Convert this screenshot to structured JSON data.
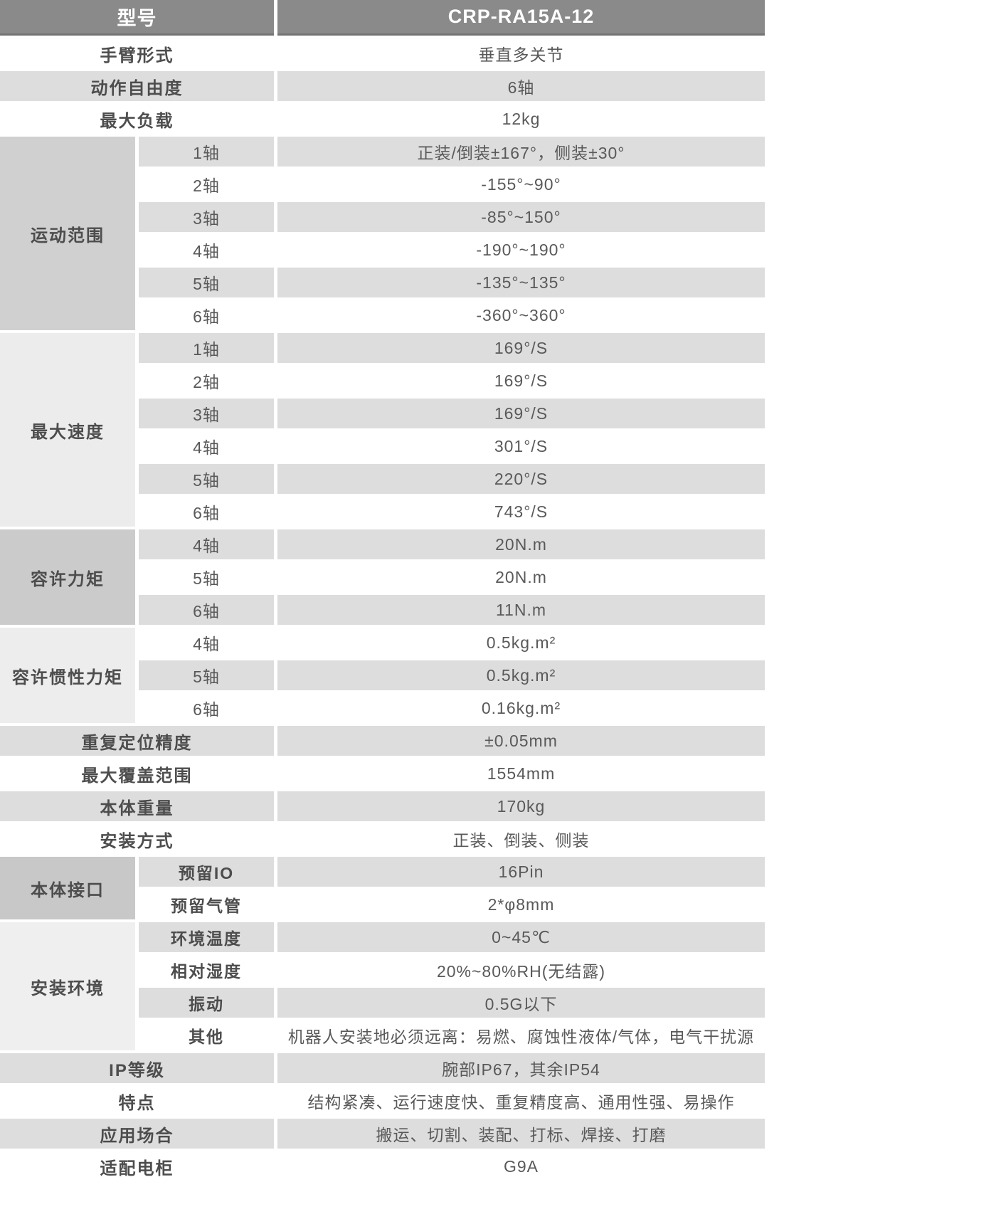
{
  "colors": {
    "header_bg": "#8a8a8a",
    "header_border": "#747474",
    "header_text": "#ffffff",
    "row_stripe": "#dddddd",
    "group_motion_range_bg": "#d0d0d0",
    "group_max_speed_bg": "#ececec",
    "group_allow_torque_bg": "#cbcbcb",
    "group_allow_inertia_bg": "#ededed",
    "group_body_interface_bg": "#c8c8c8",
    "group_install_env_bg": "#efefef",
    "label_text": "#4d4d4d",
    "value_text": "#595959"
  },
  "table": {
    "header": {
      "label": "型号",
      "value": "CRP-RA15A-12"
    },
    "top": [
      {
        "label": "手臂形式",
        "value": "垂直多关节"
      },
      {
        "label": "动作自由度",
        "value": "6轴"
      },
      {
        "label": "最大负载",
        "value": "12kg"
      }
    ],
    "motion_range": {
      "label": "运动范围",
      "rows": [
        {
          "label": "1轴",
          "value": "正装/倒装±167°，侧装±30°"
        },
        {
          "label": "2轴",
          "value": "-155°~90°"
        },
        {
          "label": "3轴",
          "value": "-85°~150°"
        },
        {
          "label": "4轴",
          "value": "-190°~190°"
        },
        {
          "label": "5轴",
          "value": "-135°~135°"
        },
        {
          "label": "6轴",
          "value": "-360°~360°"
        }
      ]
    },
    "max_speed": {
      "label": "最大速度",
      "rows": [
        {
          "label": "1轴",
          "value": "169°/S"
        },
        {
          "label": "2轴",
          "value": "169°/S"
        },
        {
          "label": "3轴",
          "value": "169°/S"
        },
        {
          "label": "4轴",
          "value": "301°/S"
        },
        {
          "label": "5轴",
          "value": "220°/S"
        },
        {
          "label": "6轴",
          "value": "743°/S"
        }
      ]
    },
    "allow_torque": {
      "label": "容许力矩",
      "rows": [
        {
          "label": "4轴",
          "value": "20N.m"
        },
        {
          "label": "5轴",
          "value": "20N.m"
        },
        {
          "label": "6轴",
          "value": "11N.m"
        }
      ]
    },
    "allow_inertia": {
      "label": "容许惯性力矩",
      "rows": [
        {
          "label": "4轴",
          "value": "0.5kg.m²"
        },
        {
          "label": "5轴",
          "value": "0.5kg.m²"
        },
        {
          "label": "6轴",
          "value": "0.16kg.m²"
        }
      ]
    },
    "mid": [
      {
        "label": "重复定位精度",
        "value": "±0.05mm"
      },
      {
        "label": "最大覆盖范围",
        "value": "1554mm"
      },
      {
        "label": "本体重量",
        "value": "170kg"
      },
      {
        "label": "安装方式",
        "value": "正装、倒装、侧装"
      }
    ],
    "body_interface": {
      "label": "本体接口",
      "rows": [
        {
          "label": "预留IO",
          "value": "16Pin"
        },
        {
          "label": "预留气管",
          "value": "2*φ8mm"
        }
      ]
    },
    "install_env": {
      "label": "安装环境",
      "rows": [
        {
          "label": "环境温度",
          "value": "0~45℃"
        },
        {
          "label": "相对湿度",
          "value": "20%~80%RH(无结露)"
        },
        {
          "label": "振动",
          "value": "0.5G以下"
        },
        {
          "label": "其他",
          "value": "机器人安装地必须远离：易燃、腐蚀性液体/气体，电气干扰源"
        }
      ]
    },
    "bottom": [
      {
        "label": "IP等级",
        "value": "腕部IP67，其余IP54"
      },
      {
        "label": "特点",
        "value": "结构紧凑、运行速度快、重复精度高、通用性强、易操作"
      },
      {
        "label": "应用场合",
        "value": "搬运、切割、装配、打标、焊接、打磨"
      },
      {
        "label": "适配电柜",
        "value": "G9A"
      }
    ]
  }
}
